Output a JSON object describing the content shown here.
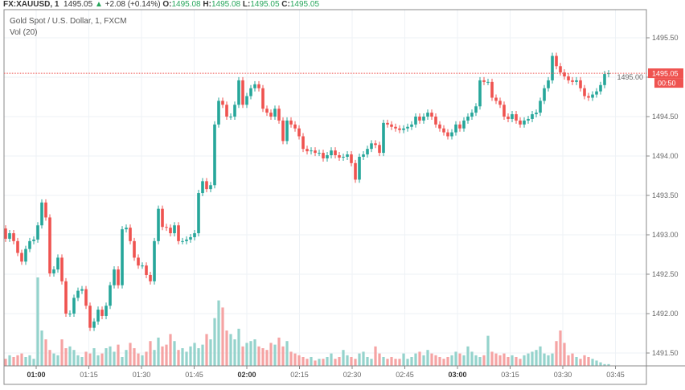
{
  "header": {
    "symbol": "FX:XAUUSD, 1",
    "last": "1495.05",
    "change": "+2.08 (+0.14%)",
    "o_label": "O:",
    "o": "1495.08",
    "h_label": "H:",
    "h": "1495.08",
    "l_label": "L:",
    "l": "1495.05",
    "c_label": "C:",
    "c": "1495.05"
  },
  "legend": {
    "title": "Gold Spot / U.S. Dollar, 1, FXCM",
    "volume": "Vol (20)"
  },
  "price_label": {
    "value": "1495.05",
    "countdown": "00:50"
  },
  "colors": {
    "up": "#26a69a",
    "down": "#ef5350",
    "up_vol": "#94d3cc",
    "down_vol": "#f5a3a3",
    "change": "#26a65b"
  },
  "chart_data": {
    "type": "candlestick",
    "ylim": [
      1491.4,
      1495.7
    ],
    "y_ticks": [
      "1495.50",
      "1495.00",
      "1494.50",
      "1494.00",
      "1493.50",
      "1493.00",
      "1492.50",
      "1492.00",
      "1491.50"
    ],
    "x_ticks": [
      {
        "label": "01:00",
        "bold": true
      },
      {
        "label": "01:15"
      },
      {
        "label": "01:30"
      },
      {
        "label": "01:45"
      },
      {
        "label": "02:00",
        "bold": true
      },
      {
        "label": "02:15"
      },
      {
        "label": "02:30"
      },
      {
        "label": "02:45"
      },
      {
        "label": "03:00",
        "bold": true
      },
      {
        "label": "03:15"
      },
      {
        "label": "03:30"
      },
      {
        "label": "03:45"
      }
    ],
    "first_open": 1493.08,
    "close": [
      1492.95,
      1493.02,
      1492.92,
      1492.77,
      1492.66,
      1492.82,
      1492.92,
      1492.94,
      1493.12,
      1493.41,
      1493.22,
      1492.51,
      1492.56,
      1492.71,
      1492.41,
      1492.0,
      1492.0,
      1492.2,
      1492.29,
      1492.31,
      1492.1,
      1491.82,
      1491.9,
      1492.05,
      1491.97,
      1492.1,
      1492.36,
      1492.56,
      1492.36,
      1493.07,
      1493.09,
      1492.92,
      1492.71,
      1492.61,
      1492.61,
      1492.49,
      1492.41,
      1492.92,
      1493.33,
      1493.1,
      1493.09,
      1493.02,
      1493.12,
      1492.92,
      1492.92,
      1492.94,
      1492.97,
      1493.02,
      1493.53,
      1493.68,
      1493.58,
      1493.63,
      1494.4,
      1494.7,
      1494.65,
      1494.5,
      1494.5,
      1494.65,
      1494.96,
      1494.65,
      1494.76,
      1494.86,
      1494.91,
      1494.86,
      1494.6,
      1494.55,
      1494.5,
      1494.6,
      1494.45,
      1494.19,
      1494.45,
      1494.4,
      1494.35,
      1494.25,
      1494.09,
      1494.06,
      1494.07,
      1494.04,
      1494.04,
      1493.97,
      1494.01,
      1494.07,
      1494.01,
      1493.98,
      1493.99,
      1494.02,
      1493.91,
      1493.7,
      1493.99,
      1494.02,
      1494.09,
      1494.16,
      1494.14,
      1494.04,
      1494.42,
      1494.4,
      1494.37,
      1494.35,
      1494.33,
      1494.35,
      1494.37,
      1494.4,
      1494.5,
      1494.45,
      1494.5,
      1494.55,
      1494.5,
      1494.4,
      1494.35,
      1494.3,
      1494.25,
      1494.3,
      1494.4,
      1494.35,
      1494.45,
      1494.5,
      1494.55,
      1494.63,
      1494.96,
      1494.94,
      1494.94,
      1494.74,
      1494.7,
      1494.65,
      1494.5,
      1494.47,
      1494.53,
      1494.45,
      1494.4,
      1494.45,
      1494.47,
      1494.53,
      1494.55,
      1494.7,
      1494.86,
      1494.96,
      1495.27,
      1495.14,
      1495.06,
      1495.01,
      1494.96,
      1494.94,
      1494.96,
      1494.86,
      1494.76,
      1494.74,
      1494.78,
      1494.82,
      1494.9,
      1495.04,
      1495.05
    ],
    "volume": [
      8,
      12,
      10,
      12,
      14,
      10,
      12,
      8,
      100,
      40,
      30,
      18,
      14,
      12,
      30,
      20,
      22,
      18,
      12,
      10,
      16,
      14,
      20,
      12,
      14,
      20,
      22,
      16,
      24,
      10,
      18,
      26,
      20,
      14,
      12,
      16,
      28,
      18,
      32,
      22,
      24,
      36,
      28,
      18,
      20,
      16,
      22,
      26,
      20,
      24,
      36,
      30,
      54,
      74,
      66,
      40,
      36,
      30,
      42,
      22,
      26,
      28,
      30,
      22,
      20,
      18,
      26,
      24,
      32,
      22,
      28,
      16,
      14,
      12,
      10,
      8,
      10,
      6,
      8,
      8,
      10,
      14,
      8,
      10,
      18,
      12,
      10,
      8,
      14,
      16,
      10,
      8,
      22,
      14,
      10,
      8,
      10,
      8,
      8,
      14,
      8,
      10,
      14,
      16,
      12,
      18,
      14,
      12,
      10,
      8,
      10,
      12,
      16,
      14,
      12,
      22,
      16,
      12,
      10,
      12,
      34,
      16,
      14,
      12,
      14,
      10,
      12,
      10,
      8,
      12,
      14,
      16,
      18,
      22,
      14,
      12,
      14,
      28,
      40,
      26,
      12,
      14,
      10,
      8,
      12,
      10,
      8,
      6,
      4,
      2,
      2
    ]
  }
}
